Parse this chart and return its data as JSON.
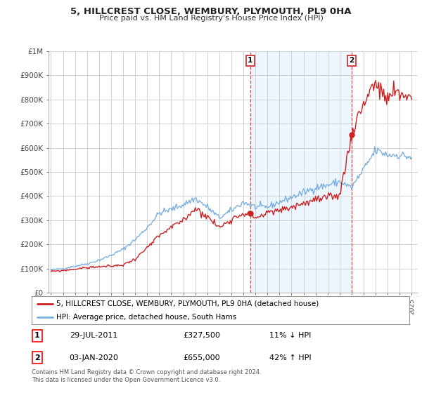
{
  "title": "5, HILLCREST CLOSE, WEMBURY, PLYMOUTH, PL9 0HA",
  "subtitle": "Price paid vs. HM Land Registry's House Price Index (HPI)",
  "ylim": [
    0,
    1000000
  ],
  "yticks": [
    0,
    100000,
    200000,
    300000,
    400000,
    500000,
    600000,
    700000,
    800000,
    900000,
    1000000
  ],
  "ytick_labels": [
    "£0",
    "£100K",
    "£200K",
    "£300K",
    "£400K",
    "£500K",
    "£600K",
    "£700K",
    "£800K",
    "£900K",
    "£1M"
  ],
  "hpi_color": "#7ab0e0",
  "sale_color": "#cc2222",
  "grid_color": "#cccccc",
  "bg_color": "#ffffff",
  "shade_color": "#ddeeff",
  "legend_label_sale": "5, HILLCREST CLOSE, WEMBURY, PLYMOUTH, PL9 0HA (detached house)",
  "legend_label_hpi": "HPI: Average price, detached house, South Hams",
  "sale1_date": "29-JUL-2011",
  "sale1_price": "£327,500",
  "sale1_hpi": "11% ↓ HPI",
  "sale1_x": 2011.57,
  "sale1_y": 327500,
  "sale2_date": "03-JAN-2020",
  "sale2_price": "£655,000",
  "sale2_hpi": "42% ↑ HPI",
  "sale2_x": 2020.01,
  "sale2_y": 655000,
  "footer": "Contains HM Land Registry data © Crown copyright and database right 2024.\nThis data is licensed under the Open Government Licence v3.0.",
  "xmin": 1994.8,
  "xmax": 2025.5
}
